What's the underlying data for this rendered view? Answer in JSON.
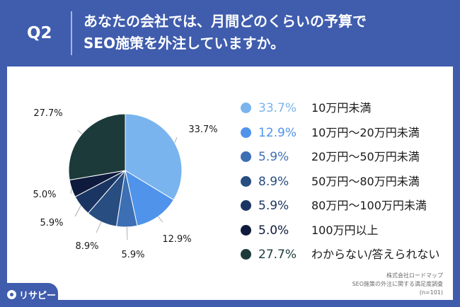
{
  "header": {
    "qnum": "Q2",
    "question_line1": "あなたの会社では、月間どのくらいの予算で",
    "question_line2": "SEO施策を外注していますか。"
  },
  "chart_data": {
    "type": "pie",
    "unit": "%",
    "slices": [
      {
        "label": "10万円未満",
        "value": 33.7,
        "pct_text": "33.7%",
        "color": "#79b4ee"
      },
      {
        "label": "10万円〜20万円未満",
        "value": 12.9,
        "pct_text": "12.9%",
        "color": "#4f93ea"
      },
      {
        "label": "20万円〜50万円未満",
        "value": 5.9,
        "pct_text": "5.9%",
        "color": "#3c6fb3"
      },
      {
        "label": "50万円〜80万円未満",
        "value": 8.9,
        "pct_text": "8.9%",
        "color": "#274d81"
      },
      {
        "label": "80万円〜100万円未満",
        "value": 5.9,
        "pct_text": "5.9%",
        "color": "#1b3562"
      },
      {
        "label": "100万円以上",
        "value": 5.0,
        "pct_text": "5.0%",
        "color": "#0e1b3c"
      },
      {
        "label": "わからない/答えられない",
        "value": 27.7,
        "pct_text": "27.7%",
        "color": "#1d3a3a"
      }
    ],
    "legend_placement": "right"
  },
  "source": {
    "line1": "株式会社ロードマップ",
    "line2": "SEO施策の外注に関する満足度調査",
    "line3": "(n=101)"
  },
  "logo": {
    "text": "リサピー"
  }
}
